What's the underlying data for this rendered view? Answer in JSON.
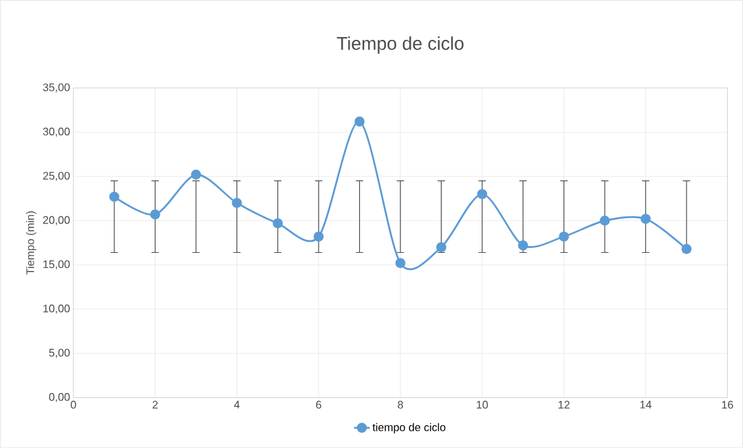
{
  "chart_data": {
    "type": "line",
    "title": "Tiempo de ciclo",
    "ylabel": "Tiempo (min)",
    "x": [
      1,
      2,
      3,
      4,
      5,
      6,
      7,
      8,
      9,
      10,
      11,
      12,
      13,
      14,
      15
    ],
    "series": [
      {
        "name": "tiempo de ciclo",
        "color": "#5b9bd5",
        "values": [
          22.7,
          20.7,
          25.2,
          22.0,
          19.7,
          18.2,
          31.2,
          15.2,
          17.0,
          23.0,
          17.2,
          18.2,
          20.0,
          20.2,
          16.8
        ],
        "errors": [
          [
            16.4,
            24.5
          ],
          [
            16.4,
            24.5
          ],
          [
            16.4,
            24.5
          ],
          [
            16.4,
            24.5
          ],
          [
            16.4,
            24.5
          ],
          [
            16.4,
            24.5
          ],
          [
            16.4,
            24.5
          ],
          [
            16.4,
            24.5
          ],
          [
            16.4,
            24.5
          ],
          [
            16.4,
            24.5
          ],
          [
            16.4,
            24.5
          ],
          [
            16.4,
            24.5
          ],
          [
            16.4,
            24.5
          ],
          [
            16.4,
            24.5
          ],
          [
            16.4,
            24.5
          ]
        ]
      }
    ],
    "xlim": [
      0,
      16
    ],
    "xticks": [
      0,
      2,
      4,
      6,
      8,
      10,
      12,
      14,
      16
    ],
    "ylim": [
      0,
      35
    ],
    "yticks": [
      {
        "value": 0,
        "label": "0,00"
      },
      {
        "value": 5,
        "label": "5,00"
      },
      {
        "value": 10,
        "label": "10,00"
      },
      {
        "value": 15,
        "label": "15,00"
      },
      {
        "value": 20,
        "label": "20,00"
      },
      {
        "value": 25,
        "label": "25,00"
      },
      {
        "value": 30,
        "label": "30,00"
      },
      {
        "value": 35,
        "label": "35,00"
      }
    ],
    "grid": true,
    "legend": "bottom",
    "marker": "circle",
    "line_style": "solid"
  }
}
